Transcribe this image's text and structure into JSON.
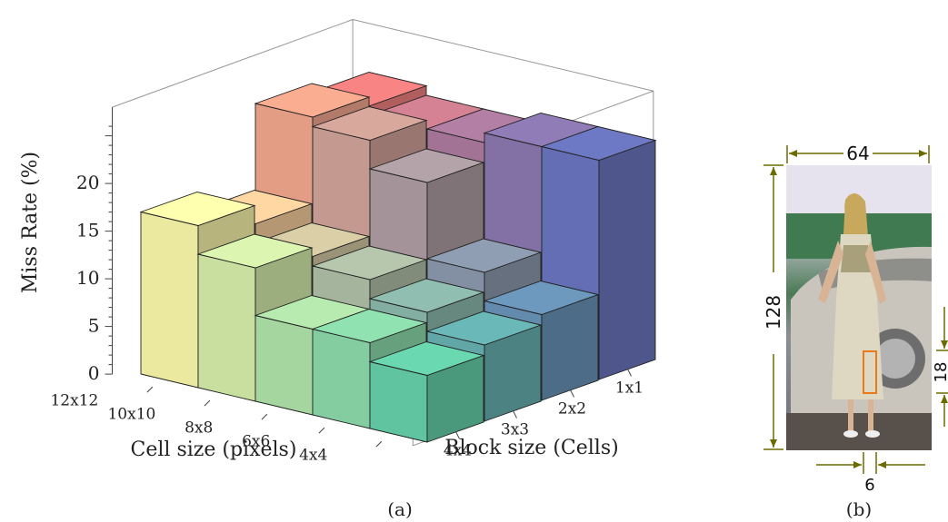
{
  "chart_data": {
    "type": "bar3d",
    "ylabel": "Miss Rate (%)",
    "xlabel": "Cell size (pixels)",
    "zlabel": "Block size (Cells)",
    "ylim": [
      0,
      25
    ],
    "yticks": [
      0,
      5,
      10,
      15,
      20
    ],
    "cell_sizes": [
      "12x12",
      "10x10",
      "8x8",
      "6x6",
      "4x4"
    ],
    "block_sizes": [
      "4x4",
      "3x3",
      "2x2",
      "1x1"
    ],
    "values": {
      "1x1": [
        23,
        22,
        22,
        23,
        23
      ],
      "2x2": [
        24,
        23,
        20,
        12,
        9
      ],
      "3x3": [
        15,
        13,
        12,
        10,
        8
      ],
      "4x4": [
        17,
        14,
        9,
        9,
        7
      ]
    },
    "panel_a_caption": "(a)"
  },
  "figure_b": {
    "width_label": "64",
    "height_label": "128",
    "window_height_label": "18",
    "window_width_label": "6",
    "caption": "(b)"
  }
}
